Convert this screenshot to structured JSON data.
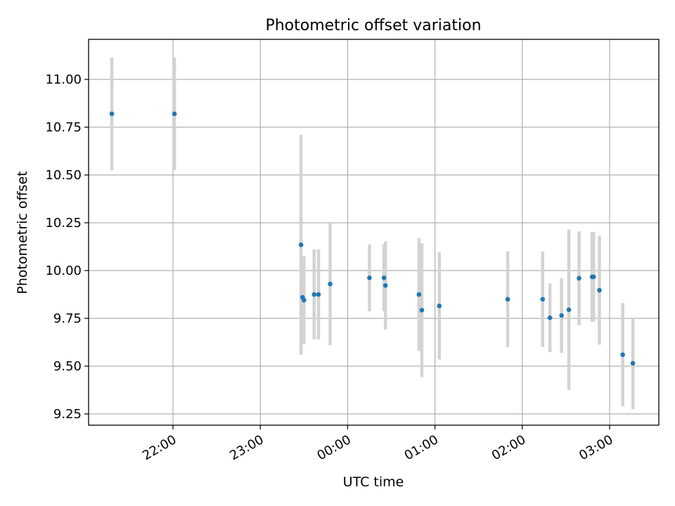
{
  "chart_data": {
    "type": "scatter",
    "title": "Photometric offset variation",
    "xlabel": "UTC time",
    "ylabel": "Photometric offset",
    "x_tick_labels": [
      "22:00",
      "23:00",
      "00:00",
      "01:00",
      "02:00",
      "03:00"
    ],
    "y_tick_labels": [
      "9.25",
      "9.50",
      "9.75",
      "10.00",
      "10.25",
      "10.50",
      "10.75",
      "11.00"
    ],
    "grid": true,
    "marker_color": "#1f77b4",
    "errorbar_color": "#d3d3d3",
    "points": [
      {
        "t": "21:18",
        "y": 10.82,
        "err": 0.295
      },
      {
        "t": "22:01",
        "y": 10.82,
        "err": 0.295
      },
      {
        "t": "23:28",
        "y": 10.135,
        "err": 0.575
      },
      {
        "t": "23:29",
        "y": 9.86,
        "err": 0.2
      },
      {
        "t": "23:30",
        "y": 9.845,
        "err": 0.23
      },
      {
        "t": "23:37",
        "y": 9.875,
        "err": 0.235
      },
      {
        "t": "23:40",
        "y": 9.875,
        "err": 0.235
      },
      {
        "t": "23:48",
        "y": 9.93,
        "err": 0.32
      },
      {
        "t": "00:15",
        "y": 9.962,
        "err": 0.175
      },
      {
        "t": "00:25",
        "y": 9.962,
        "err": 0.175
      },
      {
        "t": "00:26",
        "y": 9.922,
        "err": 0.23
      },
      {
        "t": "00:49",
        "y": 9.875,
        "err": 0.295
      },
      {
        "t": "00:51",
        "y": 9.793,
        "err": 0.35
      },
      {
        "t": "01:03",
        "y": 9.815,
        "err": 0.28
      },
      {
        "t": "01:50",
        "y": 9.85,
        "err": 0.25
      },
      {
        "t": "02:14",
        "y": 9.85,
        "err": 0.25
      },
      {
        "t": "02:19",
        "y": 9.753,
        "err": 0.18
      },
      {
        "t": "02:27",
        "y": 9.765,
        "err": 0.195
      },
      {
        "t": "02:32",
        "y": 9.795,
        "err": 0.42
      },
      {
        "t": "02:39",
        "y": 9.96,
        "err": 0.245
      },
      {
        "t": "02:48",
        "y": 9.967,
        "err": 0.235
      },
      {
        "t": "02:49",
        "y": 9.967,
        "err": 0.235
      },
      {
        "t": "02:53",
        "y": 9.897,
        "err": 0.285
      },
      {
        "t": "03:09",
        "y": 9.56,
        "err": 0.27
      },
      {
        "t": "03:16",
        "y": 9.515,
        "err": 0.24
      }
    ]
  }
}
